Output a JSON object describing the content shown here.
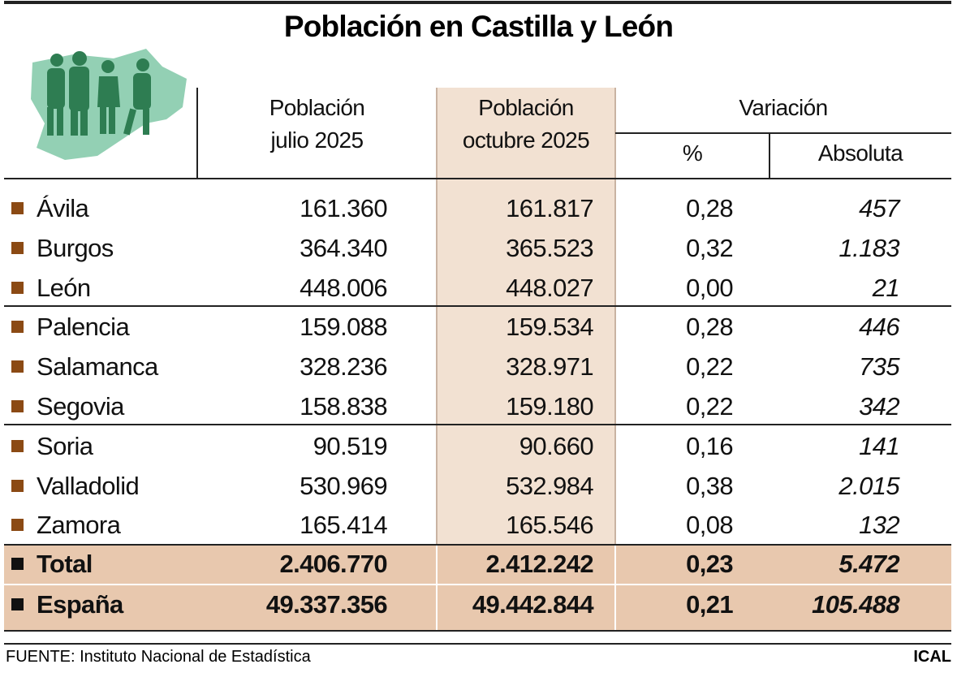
{
  "header": {
    "title": "Población en Castilla y León",
    "columns": {
      "july": [
        "Población",
        "julio 2025"
      ],
      "october": [
        "Población",
        "octubre 2025"
      ],
      "variation": "Variación",
      "percent": "%",
      "absolute": "Absoluta"
    }
  },
  "table": {
    "rows": [
      [
        "Ávila",
        "161.360",
        "161.817",
        "0,28",
        "457"
      ],
      [
        "Burgos",
        "364.340",
        "365.523",
        "0,32",
        "1.183"
      ],
      [
        "León",
        "448.006",
        "448.027",
        "0,00",
        "21"
      ],
      [
        "Palencia",
        "159.088",
        "159.534",
        "0,28",
        "446"
      ],
      [
        "Salamanca",
        "328.236",
        "328.971",
        "0,22",
        "735"
      ],
      [
        "Segovia",
        "158.838",
        "159.180",
        "0,22",
        "342"
      ],
      [
        "Soria",
        "90.519",
        "90.660",
        "0,16",
        "141"
      ],
      [
        "Valladolid",
        "530.969",
        "532.984",
        "0,38",
        "2.015"
      ],
      [
        "Zamora",
        "165.414",
        "165.546",
        "0,08",
        "132"
      ]
    ],
    "totals": [
      [
        "Total",
        "2.406.770",
        "2.412.242",
        "0,23",
        "5.472"
      ],
      [
        "España",
        "49.337.356",
        "49.442.844",
        "0,21",
        "105.488"
      ]
    ]
  },
  "footer": {
    "source": "FUENTE: Instituto Nacional de Estadística",
    "credit": "ICAL"
  }
}
